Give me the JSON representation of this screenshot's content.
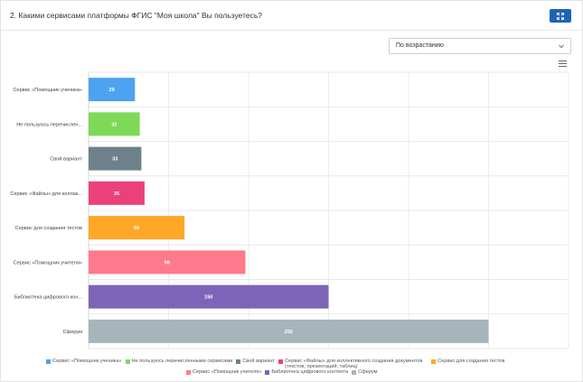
{
  "header": {
    "title": "2. Какими сервисами платформы ФГИС \"Моя школа\" Вы пользуетесь?"
  },
  "controls": {
    "sort_value": "По возрастанию"
  },
  "icons": {
    "expand": "expand-icon",
    "sort_chevron": "chevron-down-icon",
    "menu": "hamburger-menu-icon"
  },
  "chart_data": {
    "type": "bar",
    "orientation": "horizontal",
    "categories": [
      "Сервис «Помощник ученика»",
      "Не пользуюсь перечислен...",
      "Свой вариант",
      "Сервис «Файлы» для коллак...",
      "Сервис для создания тестов",
      "Сервис «Помощник учителя»",
      "Библиотека цифрового кон...",
      "Сферум"
    ],
    "values": [
      29,
      32,
      33,
      35,
      60,
      98,
      150,
      250
    ],
    "colors": [
      "#4da3ef",
      "#7ed957",
      "#6e818b",
      "#ec407a",
      "#ffa726",
      "#ff7a8a",
      "#7e64b8",
      "#a7b4bc"
    ],
    "xlim": [
      0,
      300
    ],
    "grid": true,
    "legend_position": "bottom",
    "legend": [
      "Сервис «Помощник ученика»",
      "Не пользуюсь перечисленными сервисами",
      "Свой вариант",
      "Сервис «Файлы» для коллективного создания документов (текстов, презентаций, таблиц)",
      "Сервис для создания тестов",
      "Сервис «Помощник учителя»",
      "Библиотека цифрового контента",
      "Сферум"
    ]
  }
}
